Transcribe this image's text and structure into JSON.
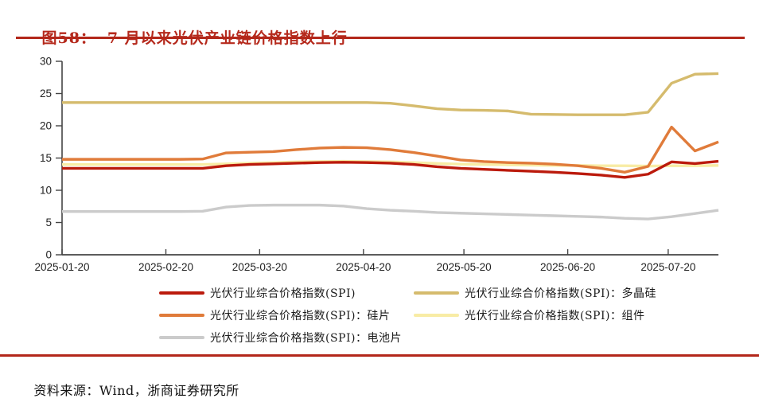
{
  "page": {
    "title_label": "图58：",
    "title_text": "7 月以来光伏产业链价格指数上行",
    "source_label": "资料来源：",
    "source_text": "Wind，浙商证券研究所"
  },
  "colors": {
    "brand_red": "#b3271a",
    "axis": "#444444",
    "tick_text": "#222222"
  },
  "chart_data": {
    "type": "line",
    "title": "",
    "xlabel": "",
    "ylabel": "",
    "ylim": [
      0,
      30
    ],
    "y_ticks": [
      0,
      5,
      10,
      15,
      20,
      25,
      30
    ],
    "x_tick_labels": [
      "2025-01-20",
      "2025-02-20",
      "2025-03-20",
      "2025-04-20",
      "2025-05-20",
      "2025-06-20",
      "2025-07-20"
    ],
    "x_tick_days": [
      0,
      31,
      59,
      90,
      120,
      151,
      181
    ],
    "x_domain_days": [
      0,
      196
    ],
    "x_points_days": [
      0,
      7,
      14,
      21,
      28,
      35,
      42,
      49,
      56,
      63,
      70,
      77,
      84,
      91,
      98,
      105,
      112,
      119,
      126,
      133,
      140,
      147,
      154,
      161,
      168,
      175,
      182,
      189,
      196
    ],
    "grid": false,
    "legend_position": "bottom",
    "series": [
      {
        "name": "光伏行业综合价格指数(SPI)",
        "color": "#bb1a0c",
        "values": [
          13.4,
          13.4,
          13.4,
          13.4,
          13.4,
          13.4,
          13.4,
          13.8,
          14.0,
          14.1,
          14.2,
          14.3,
          14.35,
          14.3,
          14.2,
          14.0,
          13.65,
          13.4,
          13.25,
          13.1,
          12.95,
          12.8,
          12.6,
          12.35,
          12.0,
          12.5,
          14.4,
          14.15,
          14.5
        ]
      },
      {
        "name": "光伏行业综合价格指数(SPI)：多晶硅",
        "color": "#d5bb6d",
        "values": [
          23.6,
          23.6,
          23.6,
          23.6,
          23.6,
          23.6,
          23.6,
          23.6,
          23.6,
          23.6,
          23.6,
          23.6,
          23.6,
          23.6,
          23.5,
          23.1,
          22.65,
          22.45,
          22.4,
          22.3,
          21.8,
          21.75,
          21.7,
          21.7,
          21.7,
          22.1,
          26.6,
          28.0,
          28.1
        ]
      },
      {
        "name": "光伏行业综合价格指数(SPI)：硅片",
        "color": "#e07b3a",
        "values": [
          14.8,
          14.8,
          14.8,
          14.8,
          14.8,
          14.8,
          14.85,
          15.8,
          15.9,
          16.0,
          16.3,
          16.55,
          16.65,
          16.6,
          16.3,
          15.85,
          15.3,
          14.7,
          14.45,
          14.3,
          14.2,
          14.05,
          13.8,
          13.4,
          12.8,
          13.7,
          19.8,
          16.1,
          17.5
        ]
      },
      {
        "name": "光伏行业综合价格指数(SPI)：组件",
        "color": "#f8eca5",
        "values": [
          14.0,
          14.0,
          14.0,
          14.0,
          14.0,
          14.0,
          14.0,
          14.1,
          14.2,
          14.3,
          14.4,
          14.45,
          14.5,
          14.45,
          14.4,
          14.3,
          14.15,
          14.05,
          14.0,
          13.95,
          13.9,
          13.85,
          13.85,
          13.8,
          13.8,
          13.75,
          13.8,
          13.8,
          13.85
        ]
      },
      {
        "name": "光伏行业综合价格指数(SPI)：电池片",
        "color": "#cbcbcb",
        "values": [
          6.7,
          6.7,
          6.7,
          6.7,
          6.7,
          6.7,
          6.75,
          7.4,
          7.65,
          7.7,
          7.7,
          7.7,
          7.55,
          7.15,
          6.9,
          6.75,
          6.55,
          6.45,
          6.35,
          6.25,
          6.15,
          6.05,
          5.95,
          5.85,
          5.65,
          5.55,
          5.9,
          6.4,
          6.9
        ]
      }
    ],
    "legend_columns": [
      [
        0,
        2,
        4
      ],
      [
        1,
        3
      ]
    ],
    "draw_order": [
      4,
      1,
      3,
      2,
      0
    ]
  }
}
